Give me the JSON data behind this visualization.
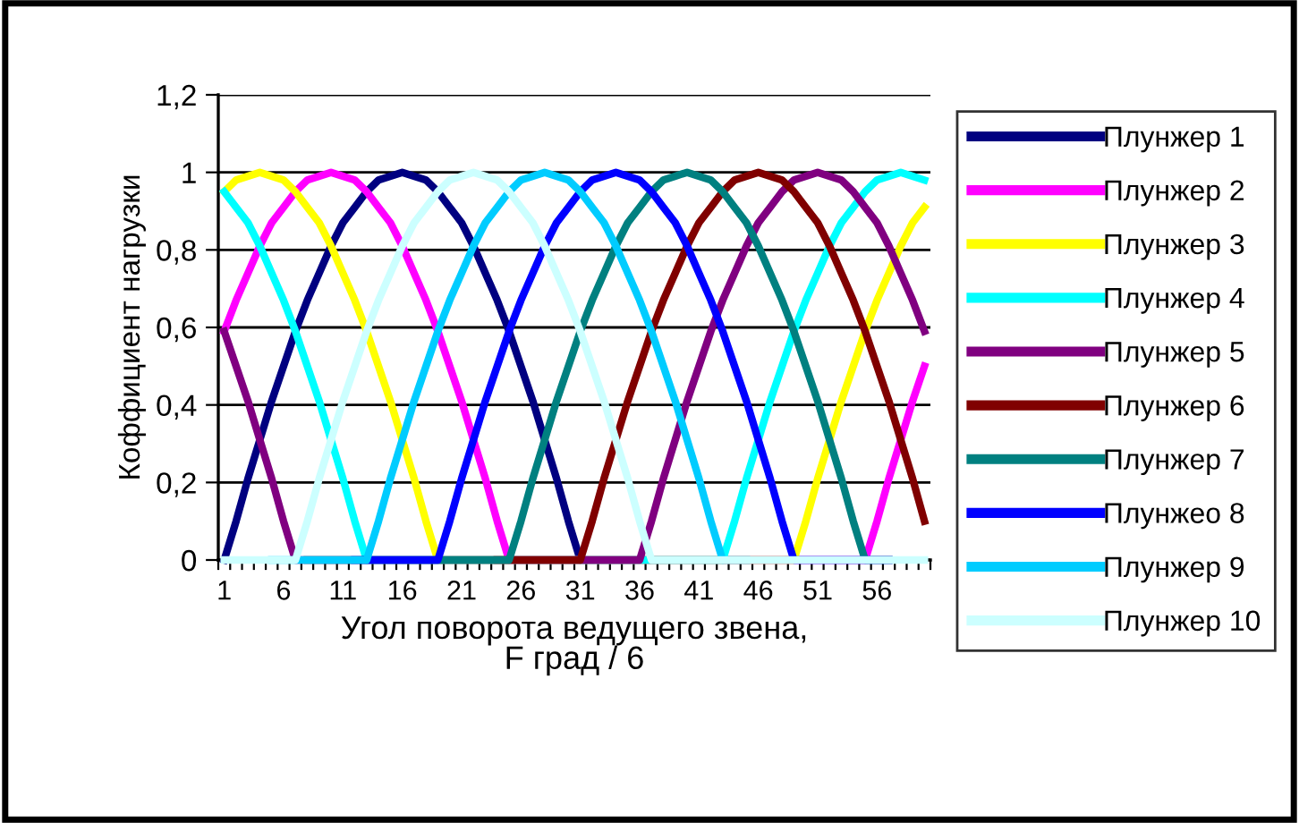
{
  "chart_data": {
    "type": "line",
    "xlabel": "Угол поворота ведущего звена,\nF град / 6",
    "ylabel": "Коффициент нагрузки",
    "categories": [
      "1",
      null,
      null,
      null,
      null,
      "6",
      null,
      null,
      null,
      null,
      "11",
      null,
      null,
      null,
      null,
      "16",
      null,
      null,
      null,
      null,
      "21",
      null,
      null,
      null,
      null,
      "26",
      null,
      null,
      null,
      null,
      "31",
      null,
      null,
      null,
      null,
      "36",
      null,
      null,
      null,
      null,
      "41",
      null,
      null,
      null,
      null,
      "46",
      null,
      null,
      null,
      null,
      "51",
      null,
      null,
      null,
      null,
      "56",
      null,
      null,
      null,
      null
    ],
    "ylim": [
      0,
      1.2
    ],
    "yticks": [
      0,
      {
        "value": 0.2,
        "label": "0,2"
      },
      {
        "value": 0.4,
        "label": "0,4"
      },
      {
        "value": 0.6,
        "label": "0,6"
      },
      {
        "value": 0.8,
        "label": "0,8"
      },
      1,
      {
        "value": 1.2,
        "label": "1,2"
      }
    ],
    "grid": "y",
    "legend": "right",
    "marker": "none",
    "line_style": "solid",
    "series": [
      {
        "name": "Плунжер 1",
        "color": "#000080",
        "values": [
          0,
          0.1,
          0.21,
          0.31,
          0.41,
          0.5,
          0.59,
          0.67,
          0.74,
          0.81,
          0.87,
          0.91,
          0.95,
          0.98,
          0.99,
          1,
          0.99,
          0.98,
          0.95,
          0.91,
          0.87,
          0.81,
          0.74,
          0.67,
          0.59,
          0.5,
          0.41,
          0.31,
          0.21,
          0.1,
          0,
          0,
          0,
          0,
          0,
          0,
          0,
          0,
          0,
          0,
          0,
          0,
          0,
          0,
          0,
          0,
          0,
          0,
          0,
          0,
          0,
          0,
          0,
          0,
          0,
          0,
          0,
          null,
          null,
          null
        ]
      },
      {
        "name": "Плунжер 2",
        "color": "#ff00ff",
        "values": [
          0.59,
          0.67,
          0.74,
          0.81,
          0.87,
          0.91,
          0.95,
          0.98,
          0.99,
          1,
          0.99,
          0.98,
          0.95,
          0.91,
          0.87,
          0.81,
          0.74,
          0.67,
          0.59,
          0.5,
          0.41,
          0.31,
          0.21,
          0.1,
          0,
          0,
          0,
          0,
          0,
          0,
          0,
          0,
          0,
          0,
          0,
          0,
          0,
          0,
          0,
          0,
          0,
          0,
          0,
          0,
          0,
          0,
          0,
          0,
          0,
          0,
          0,
          0,
          0,
          0,
          0,
          0.1,
          0.21,
          0.31,
          0.41,
          0.5
        ]
      },
      {
        "name": "Плунжер 3",
        "color": "#ffff00",
        "values": [
          0.95,
          0.98,
          0.99,
          1,
          0.99,
          0.98,
          0.95,
          0.91,
          0.87,
          0.81,
          0.74,
          0.67,
          0.59,
          0.5,
          0.41,
          0.31,
          0.21,
          0.1,
          0,
          0,
          0,
          0,
          0,
          0,
          0,
          0,
          0,
          0,
          0,
          0,
          0,
          0,
          0,
          0,
          0,
          0,
          0,
          0,
          0,
          0,
          0,
          0,
          0,
          0,
          0,
          0,
          0,
          0,
          0,
          0.1,
          0.21,
          0.31,
          0.41,
          0.5,
          0.59,
          0.67,
          0.74,
          0.81,
          0.87,
          0.91
        ]
      },
      {
        "name": "Плунжер 4",
        "color": "#00ffff",
        "values": [
          0.95,
          0.91,
          0.87,
          0.81,
          0.74,
          0.67,
          0.59,
          0.5,
          0.41,
          0.31,
          0.21,
          0.1,
          0,
          0,
          0,
          0,
          0,
          0,
          0,
          0,
          0,
          0,
          0,
          0,
          0,
          0,
          0,
          0,
          0,
          0,
          0,
          0,
          0,
          0,
          0,
          0,
          0,
          0,
          0,
          0,
          0,
          0,
          0,
          0.1,
          0.21,
          0.31,
          0.41,
          0.5,
          0.59,
          0.67,
          0.74,
          0.81,
          0.87,
          0.91,
          0.95,
          0.98,
          0.99,
          1,
          0.99,
          0.98
        ]
      },
      {
        "name": "Плунжер 5",
        "color": "#800080",
        "values": [
          0.59,
          0.5,
          0.41,
          0.31,
          0.21,
          0.1,
          0,
          0,
          0,
          0,
          0,
          0,
          0,
          0,
          0,
          0,
          0,
          0,
          0,
          0,
          0,
          0,
          0,
          0,
          0,
          0,
          0,
          0,
          0,
          0,
          0,
          0,
          0,
          0,
          0,
          0,
          0.1,
          0.21,
          0.31,
          0.41,
          0.5,
          0.59,
          0.67,
          0.74,
          0.81,
          0.87,
          0.91,
          0.95,
          0.98,
          0.99,
          1,
          0.99,
          0.98,
          0.95,
          0.91,
          0.87,
          0.81,
          0.74,
          0.67,
          0.59
        ]
      },
      {
        "name": "Плунжер 6",
        "color": "#800000",
        "values": [
          null,
          null,
          null,
          null,
          null,
          null,
          null,
          null,
          null,
          null,
          null,
          null,
          null,
          null,
          null,
          null,
          null,
          null,
          null,
          null,
          null,
          null,
          null,
          0,
          0,
          0,
          0,
          0,
          0,
          0,
          0,
          0.1,
          0.21,
          0.31,
          0.41,
          0.5,
          0.59,
          0.67,
          0.74,
          0.81,
          0.87,
          0.91,
          0.95,
          0.98,
          0.99,
          1,
          0.99,
          0.98,
          0.95,
          0.91,
          0.87,
          0.81,
          0.74,
          0.67,
          0.59,
          0.5,
          0.41,
          0.31,
          0.21,
          0.1
        ]
      },
      {
        "name": "Плунжер 7",
        "color": "#008080",
        "values": [
          null,
          null,
          null,
          null,
          null,
          null,
          null,
          0,
          0,
          0,
          0,
          0,
          0,
          0,
          0,
          0,
          0,
          0,
          0,
          0,
          0,
          0,
          0,
          0,
          0,
          0.1,
          0.21,
          0.31,
          0.41,
          0.5,
          0.59,
          0.67,
          0.74,
          0.81,
          0.87,
          0.91,
          0.95,
          0.98,
          0.99,
          1,
          0.99,
          0.98,
          0.95,
          0.91,
          0.87,
          0.81,
          0.74,
          0.67,
          0.59,
          0.5,
          0.41,
          0.31,
          0.21,
          0.1,
          0,
          0,
          0,
          null,
          null,
          null
        ]
      },
      {
        "name": "Плунжео 8",
        "color": "#0000ff",
        "values": [
          null,
          null,
          null,
          null,
          null,
          null,
          null,
          null,
          null,
          null,
          null,
          0,
          0,
          0,
          0,
          0,
          0,
          0,
          0,
          0.1,
          0.21,
          0.31,
          0.41,
          0.5,
          0.59,
          0.67,
          0.74,
          0.81,
          0.87,
          0.91,
          0.95,
          0.98,
          0.99,
          1,
          0.99,
          0.98,
          0.95,
          0.91,
          0.87,
          0.81,
          0.74,
          0.67,
          0.59,
          0.5,
          0.41,
          0.31,
          0.21,
          0.1,
          0,
          0,
          0,
          0,
          0,
          0,
          0,
          0,
          0,
          null,
          null,
          null
        ]
      },
      {
        "name": "Плунжер 9",
        "color": "#00ccff",
        "values": [
          null,
          null,
          null,
          null,
          0,
          0,
          0,
          0,
          0,
          0,
          0,
          0,
          0,
          0.1,
          0.21,
          0.31,
          0.41,
          0.5,
          0.59,
          0.67,
          0.74,
          0.81,
          0.87,
          0.91,
          0.95,
          0.98,
          0.99,
          1,
          0.99,
          0.98,
          0.95,
          0.91,
          0.87,
          0.81,
          0.74,
          0.67,
          0.59,
          0.5,
          0.41,
          0.31,
          0.21,
          0.1,
          0,
          0,
          0,
          null,
          null,
          null,
          null,
          null,
          null,
          null,
          null,
          null,
          null,
          null,
          null,
          null,
          null,
          null
        ]
      },
      {
        "name": "Плунжер 10",
        "color": "#ccffff",
        "values": [
          0,
          0,
          0,
          0,
          0,
          0,
          0,
          0.1,
          0.21,
          0.31,
          0.41,
          0.5,
          0.59,
          0.67,
          0.74,
          0.81,
          0.87,
          0.91,
          0.95,
          0.98,
          0.99,
          1,
          0.99,
          0.98,
          0.95,
          0.91,
          0.87,
          0.81,
          0.74,
          0.67,
          0.59,
          0.5,
          0.41,
          0.31,
          0.21,
          0.1,
          0,
          0,
          0,
          0,
          0,
          0,
          0,
          0,
          0,
          0,
          0,
          0,
          0,
          0,
          0,
          0,
          0,
          0,
          0,
          0,
          0,
          0,
          0,
          0
        ]
      }
    ]
  }
}
